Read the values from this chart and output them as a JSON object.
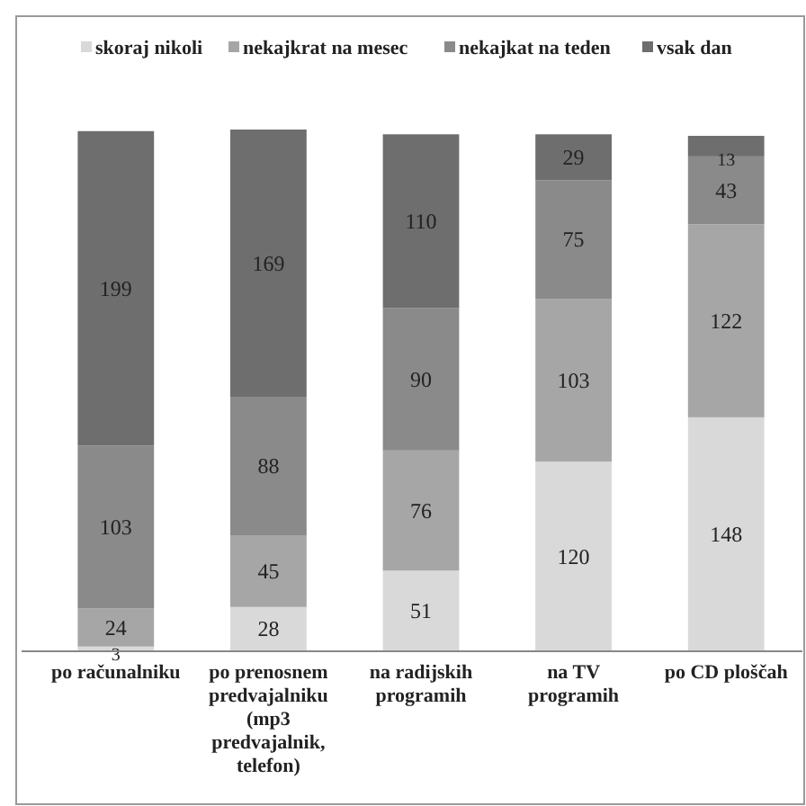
{
  "chart_data": {
    "type": "bar",
    "stacked": true,
    "data_labels": true,
    "legend": "top",
    "categories": [
      "po računalniku",
      "po prenosnem predvajalniku (mp3 predvajalnik, telefon)",
      "na radijskih programih",
      "na TV programih",
      "po CD ploščah"
    ],
    "series": [
      {
        "name": "skoraj nikoli",
        "color": "#d9d9d9",
        "values": [
          3,
          28,
          51,
          120,
          148
        ]
      },
      {
        "name": "nekajkrat na mesec",
        "color": "#a6a6a6",
        "values": [
          24,
          45,
          76,
          103,
          122
        ]
      },
      {
        "name": "nekajkat na teden",
        "color": "#8a8a8a",
        "values": [
          103,
          88,
          90,
          75,
          43
        ]
      },
      {
        "name": "vsak dan",
        "color": "#6e6e6e",
        "values": [
          199,
          169,
          110,
          29,
          13
        ]
      }
    ]
  }
}
